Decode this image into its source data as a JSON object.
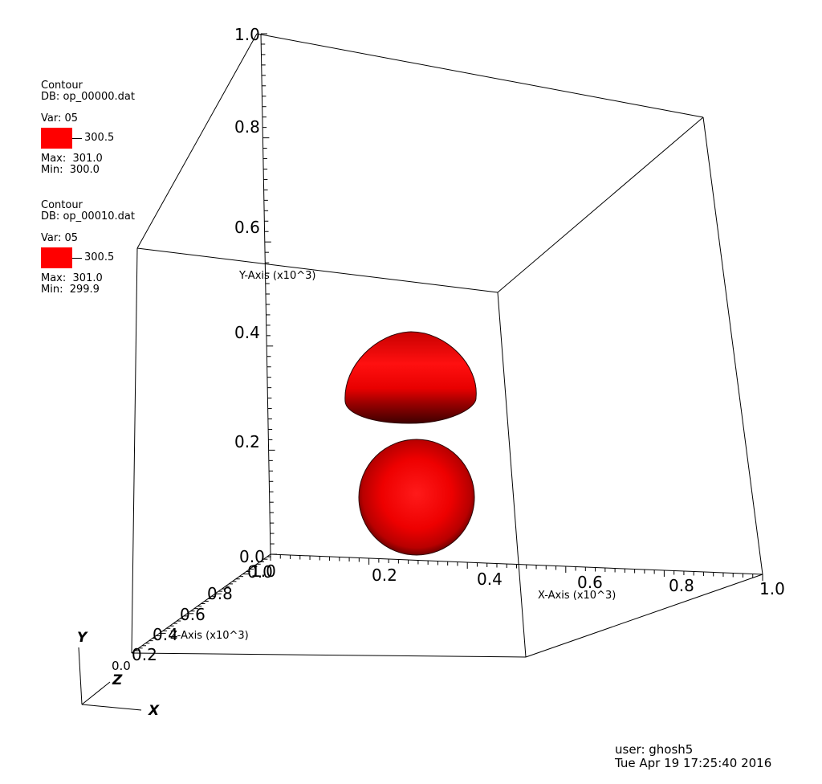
{
  "legends": [
    {
      "plot_type": "Contour",
      "db": "DB: op_00000.dat",
      "var": "Var: 05",
      "level": "300.5",
      "max": "Max:  301.0",
      "min": "Min:  300.0"
    },
    {
      "plot_type": "Contour",
      "db": "DB: op_00010.dat",
      "var": "Var: 05",
      "level": "300.5",
      "max": "Max:  301.0",
      "min": "Min:  299.9"
    }
  ],
  "colors": {
    "contour": "#ff0000",
    "frame": "#000000",
    "background": "#ffffff"
  },
  "axes": {
    "y_label": "Y-Axis (x10^3)",
    "x_label": "X-Axis (x10^3)",
    "z_label": "Z-Axis (x10^3)",
    "y_ticks": [
      "0.0",
      "0.2",
      "0.4",
      "0.6",
      "0.8",
      "1.0"
    ],
    "x_ticks": [
      "0.0",
      "0.2",
      "0.4",
      "0.6",
      "0.8",
      "1.0"
    ],
    "z_ticks": [
      "1.0",
      "0.8",
      "0.6",
      "0.4",
      "0.2"
    ]
  },
  "triad": {
    "y": "Y",
    "z": "Z",
    "x": "X",
    "origin": "0.0"
  },
  "user_info": {
    "user": "user: ghosh5",
    "timestamp": "Tue Apr 19 17:25:40 2016"
  }
}
